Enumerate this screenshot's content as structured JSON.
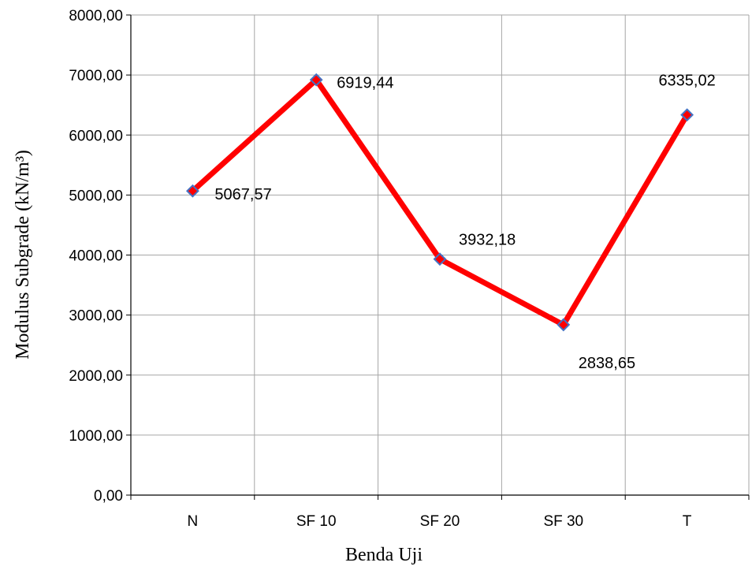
{
  "chart_data": {
    "type": "line",
    "categories": [
      "N",
      "SF 10",
      "SF 20",
      "SF 30",
      "T"
    ],
    "series": [
      {
        "values": [
          5067.57,
          6919.44,
          3932.18,
          2838.65,
          6335.02
        ],
        "color": "#ff0000",
        "marker_color": "#4472c4"
      }
    ],
    "data_labels": [
      "5067,57",
      "6919,44",
      "3932,18",
      "2838,65",
      "6335,02"
    ],
    "xlabel": "Benda Uji",
    "ylabel": "Modulus Subgrade (kN/m³)",
    "ylim": [
      0,
      8000
    ],
    "y_ticks": [
      0,
      1000,
      2000,
      3000,
      4000,
      5000,
      6000,
      7000,
      8000
    ],
    "y_tick_labels": [
      "0,00",
      "1000,00",
      "2000,00",
      "3000,00",
      "4000,00",
      "5000,00",
      "6000,00",
      "7000,00",
      "8000,00"
    ],
    "grid": true,
    "legend": "none"
  }
}
